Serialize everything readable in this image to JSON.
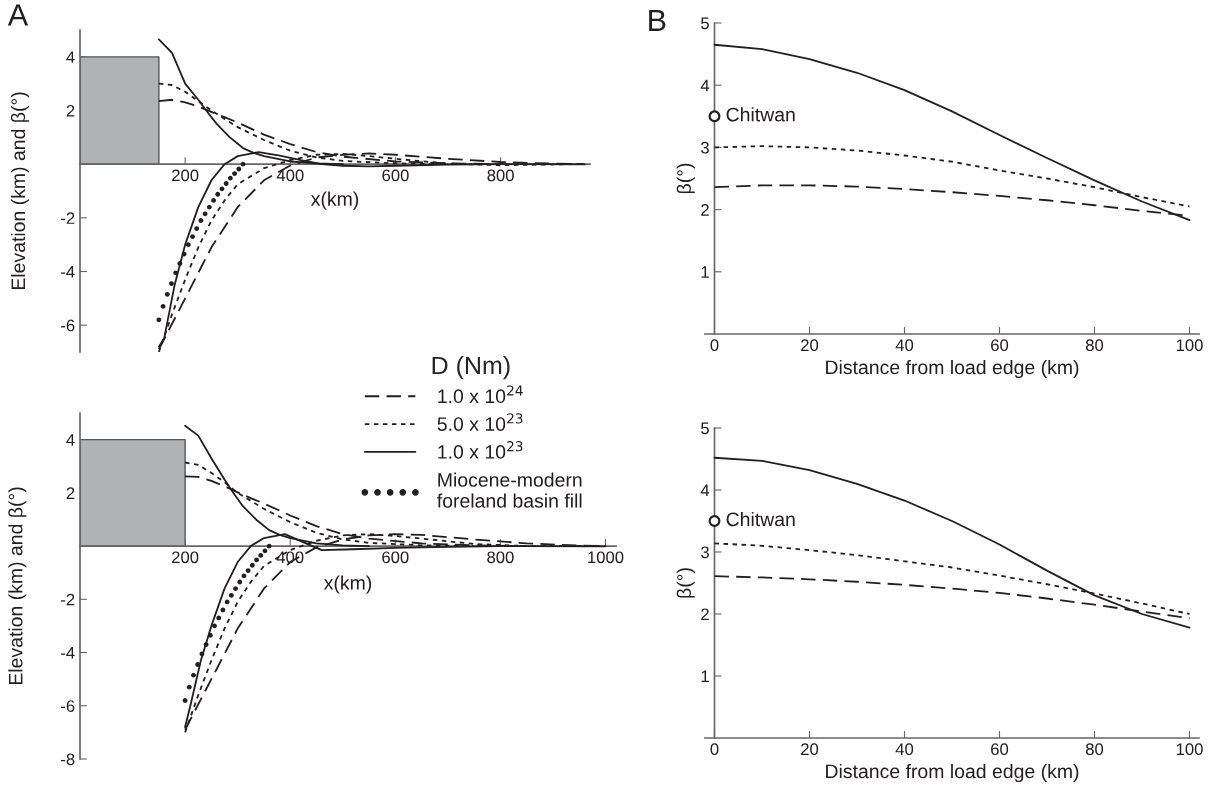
{
  "chart_data": [
    {
      "type": "line",
      "title": "A",
      "xlabel": "x(km)",
      "ylabel": "Elevation (km) and β(°)",
      "xlim": [
        0,
        970
      ],
      "ylim": [
        -7,
        5
      ],
      "xticks": [
        200,
        400,
        600,
        800
      ],
      "yticks": [
        -6,
        -4,
        -2,
        2,
        4
      ],
      "legend": "bottom right",
      "legend_title": "D (Nm)",
      "series": [
        {
          "type": "area",
          "color": "#b1b2b6",
          "x": [
            0,
            150
          ],
          "values": [
            4,
            4
          ]
        },
        {
          "name": "1.0 x 10$^{24}$",
          "color": "#231f20",
          "line_style": "dashed",
          "x": [
            150,
            200,
            250,
            300,
            350,
            400,
            450,
            500,
            550,
            600,
            700,
            800,
            900,
            960
          ],
          "values": [
            -6.9,
            -5.0,
            -3.1,
            -1.6,
            -0.6,
            -0.05,
            0.25,
            0.35,
            0.4,
            0.35,
            0.2,
            0.08,
            0.02,
            0
          ]
        },
        {
          "name": "5.0 x 10$^{23}$",
          "color": "#231f20",
          "line_style": "dotted",
          "x": [
            150,
            175,
            200,
            225,
            250,
            275,
            300,
            350,
            400,
            450,
            500,
            550,
            600,
            700,
            800,
            960
          ],
          "values": [
            -7,
            -5.6,
            -4.3,
            -3.1,
            -2.1,
            -1.35,
            -0.75,
            -0.15,
            0.15,
            0.35,
            0.38,
            0.3,
            0.2,
            0.02,
            -0.04,
            0.01
          ]
        },
        {
          "name": "1.0 x 10$^{23}$",
          "color": "#231f20",
          "line_style": "solid",
          "x": [
            150,
            160,
            180,
            200,
            225,
            250,
            275,
            300,
            340,
            380,
            420,
            460,
            500,
            550,
            600,
            700,
            800,
            960
          ],
          "values": [
            -6.8,
            -6.5,
            -4.5,
            -3.0,
            -1.6,
            -0.6,
            0.0,
            0.3,
            0.45,
            0.32,
            0.15,
            0.0,
            -0.06,
            -0.08,
            -0.06,
            -0.02,
            0,
            -0.01
          ]
        },
        {
          "name": "Miocene-modern\nforeland basin fill",
          "type": "scatter",
          "marker": "circle",
          "color": "#231f20",
          "x": [
            150,
            158,
            166,
            174,
            182,
            190,
            198,
            206,
            214,
            222,
            230,
            238,
            246,
            254,
            262,
            270,
            278,
            286,
            294,
            302,
            310
          ],
          "values": [
            -5.8,
            -5.3,
            -4.85,
            -4.45,
            -4.05,
            -3.7,
            -3.35,
            -3.0,
            -2.7,
            -2.4,
            -2.1,
            -1.85,
            -1.6,
            -1.35,
            -1.12,
            -0.92,
            -0.72,
            -0.52,
            -0.35,
            -0.18,
            0
          ]
        },
        {
          "color": "#231f20",
          "line_style": "dashed",
          "x": [
            150,
            175,
            200,
            225,
            250,
            275,
            300,
            350,
            400,
            450,
            500,
            600,
            700,
            800
          ],
          "values": [
            2.35,
            2.4,
            2.3,
            2.15,
            1.95,
            1.75,
            1.55,
            1.1,
            0.75,
            0.45,
            0.28,
            0.1,
            0.03,
            0
          ]
        },
        {
          "color": "#231f20",
          "line_style": "dotted",
          "x": [
            150,
            175,
            200,
            225,
            250,
            275,
            300,
            350,
            400,
            450,
            500,
            600,
            700
          ],
          "values": [
            3.0,
            2.95,
            2.7,
            2.35,
            2.0,
            1.68,
            1.38,
            0.9,
            0.5,
            0.25,
            0.12,
            0.03,
            0
          ]
        },
        {
          "color": "#231f20",
          "line_style": "solid",
          "x": [
            150,
            175,
            200,
            225,
            240,
            260,
            285,
            310,
            330,
            350,
            400,
            450,
            500
          ],
          "values": [
            4.65,
            4.15,
            3.0,
            2.4,
            2.0,
            1.5,
            1.0,
            0.6,
            0.42,
            0.3,
            0.1,
            0.03,
            0
          ]
        }
      ]
    },
    {
      "type": "line",
      "xlabel": "x(km)",
      "ylabel": "Elevation (km) and β(°)",
      "xlim": [
        0,
        1020
      ],
      "ylim": [
        -8,
        5
      ],
      "xticks": [
        200,
        400,
        600,
        800,
        1000
      ],
      "yticks": [
        -8,
        -6,
        -4,
        -2,
        2,
        4
      ],
      "series": [
        {
          "type": "area",
          "color": "#b1b2b6",
          "x": [
            0,
            200
          ],
          "values": [
            4,
            4
          ]
        },
        {
          "color": "#231f20",
          "line_style": "dashed",
          "x": [
            200,
            250,
            300,
            350,
            400,
            450,
            500,
            550,
            600,
            650,
            750,
            850,
            950,
            1000
          ],
          "values": [
            -6.9,
            -5.0,
            -3.1,
            -1.6,
            -0.6,
            -0.05,
            0.25,
            0.4,
            0.45,
            0.42,
            0.25,
            0.1,
            0.02,
            0
          ]
        },
        {
          "color": "#231f20",
          "line_style": "dotted",
          "x": [
            200,
            225,
            250,
            275,
            300,
            325,
            350,
            400,
            450,
            500,
            550,
            600,
            650,
            750,
            850,
            1000
          ],
          "values": [
            -7.0,
            -5.6,
            -4.3,
            -3.1,
            -2.1,
            -1.35,
            -0.75,
            -0.15,
            0.2,
            0.4,
            0.45,
            0.38,
            0.28,
            0.08,
            0,
            0.01
          ]
        },
        {
          "color": "#231f20",
          "line_style": "solid",
          "x": [
            200,
            210,
            230,
            250,
            275,
            300,
            325,
            350,
            390,
            430,
            460,
            520,
            600,
            700,
            800,
            1000
          ],
          "values": [
            -6.8,
            -6.0,
            -4.3,
            -3.0,
            -1.6,
            -0.6,
            0.0,
            0.3,
            0.45,
            0.1,
            -0.15,
            -0.12,
            -0.07,
            -0.03,
            0,
            -0.01
          ]
        },
        {
          "type": "scatter",
          "marker": "circle",
          "color": "#231f20",
          "x": [
            200,
            208,
            216,
            224,
            232,
            240,
            248,
            256,
            264,
            272,
            280,
            288,
            296,
            304,
            312,
            320,
            328,
            336,
            344,
            352,
            360
          ],
          "values": [
            -5.8,
            -5.3,
            -4.85,
            -4.45,
            -4.05,
            -3.7,
            -3.35,
            -3.0,
            -2.7,
            -2.4,
            -2.1,
            -1.85,
            -1.6,
            -1.35,
            -1.12,
            -0.92,
            -0.72,
            -0.52,
            -0.35,
            -0.18,
            0
          ]
        },
        {
          "color": "#231f20",
          "line_style": "dashed",
          "x": [
            200,
            225,
            250,
            275,
            300,
            325,
            350,
            400,
            450,
            500,
            550,
            650,
            750,
            850
          ],
          "values": [
            2.62,
            2.6,
            2.45,
            2.25,
            2.02,
            1.8,
            1.6,
            1.15,
            0.75,
            0.45,
            0.28,
            0.1,
            0.03,
            0
          ]
        },
        {
          "color": "#231f20",
          "line_style": "dotted",
          "x": [
            200,
            225,
            250,
            275,
            300,
            325,
            350,
            400,
            450,
            500,
            550,
            650,
            750
          ],
          "values": [
            3.14,
            3.05,
            2.75,
            2.4,
            2.0,
            1.7,
            1.4,
            0.9,
            0.5,
            0.25,
            0.12,
            0.03,
            0
          ]
        },
        {
          "color": "#231f20",
          "line_style": "solid",
          "x": [
            200,
            225,
            250,
            275,
            290,
            310,
            335,
            360,
            380,
            400,
            450,
            500,
            550
          ],
          "values": [
            4.52,
            4.15,
            3.3,
            2.5,
            2.05,
            1.5,
            1.0,
            0.6,
            0.42,
            0.3,
            0.1,
            0.03,
            0
          ]
        }
      ]
    },
    {
      "type": "line",
      "title": "B",
      "xlabel": "Distance from load edge (km)",
      "ylabel": "β(°)",
      "xlim": [
        -2,
        102
      ],
      "ylim": [
        0,
        5
      ],
      "xticks": [
        0,
        20,
        40,
        60,
        80,
        100
      ],
      "yticks": [
        1,
        2,
        3,
        4,
        5
      ],
      "annotations": [
        {
          "text": "Chitwan",
          "x": 0,
          "y": 3.5
        }
      ],
      "x": [
        0,
        10,
        20,
        30,
        40,
        50,
        60,
        70,
        80,
        90,
        100
      ],
      "series": [
        {
          "color": "#231f20",
          "line_style": "dashed",
          "values": [
            2.36,
            2.39,
            2.39,
            2.37,
            2.33,
            2.28,
            2.22,
            2.15,
            2.07,
            1.98,
            1.9
          ]
        },
        {
          "color": "#231f20",
          "line_style": "dotted",
          "values": [
            3.0,
            3.02,
            3.0,
            2.95,
            2.87,
            2.77,
            2.63,
            2.5,
            2.36,
            2.2,
            2.05
          ]
        },
        {
          "color": "#231f20",
          "line_style": "solid",
          "values": [
            4.65,
            4.58,
            4.42,
            4.2,
            3.92,
            3.58,
            3.2,
            2.83,
            2.47,
            2.13,
            1.83
          ]
        }
      ]
    },
    {
      "type": "line",
      "xlabel": "Distance from load edge (km)",
      "ylabel": "β(°)",
      "xlim": [
        -2,
        102
      ],
      "ylim": [
        0,
        5
      ],
      "xticks": [
        0,
        20,
        40,
        60,
        80,
        100
      ],
      "yticks": [
        1,
        2,
        3,
        4,
        5
      ],
      "annotations": [
        {
          "text": "Chitwan",
          "x": 0,
          "y": 3.5
        }
      ],
      "x": [
        0,
        10,
        20,
        30,
        40,
        50,
        60,
        70,
        80,
        90,
        100
      ],
      "series": [
        {
          "color": "#231f20",
          "line_style": "dashed",
          "values": [
            2.61,
            2.59,
            2.56,
            2.52,
            2.47,
            2.41,
            2.34,
            2.25,
            2.15,
            2.04,
            1.93
          ]
        },
        {
          "color": "#231f20",
          "line_style": "dotted",
          "values": [
            3.14,
            3.1,
            3.03,
            2.95,
            2.85,
            2.75,
            2.62,
            2.48,
            2.33,
            2.17,
            2.0
          ]
        },
        {
          "color": "#231f20",
          "line_style": "solid",
          "values": [
            4.52,
            4.47,
            4.32,
            4.1,
            3.83,
            3.5,
            3.12,
            2.7,
            2.3,
            2.0,
            1.78
          ]
        }
      ]
    }
  ]
}
